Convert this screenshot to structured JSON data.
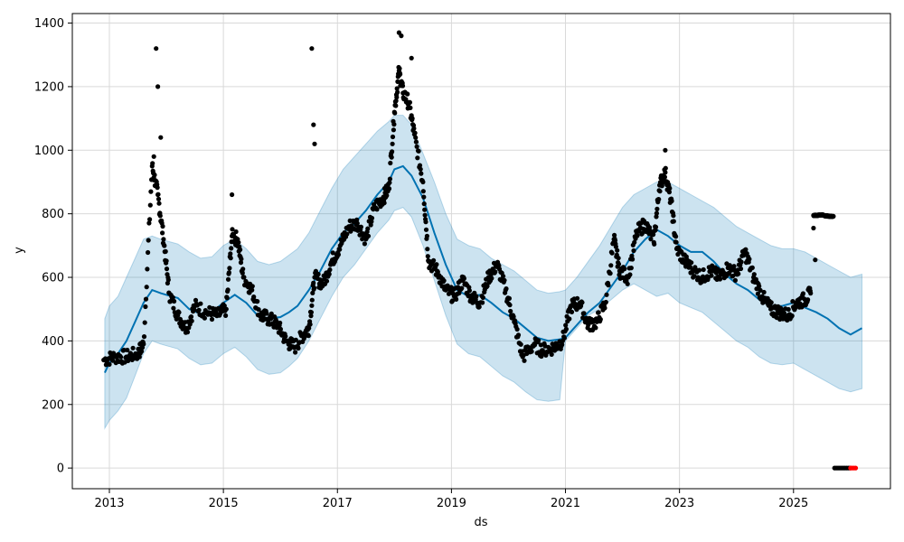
{
  "chart_data": {
    "type": "line",
    "title": "",
    "xlabel": "ds",
    "ylabel": "y",
    "grid": true,
    "xlim": [
      2012.35,
      2026.7
    ],
    "ylim": [
      -65,
      1430
    ],
    "x_ticks": [
      {
        "value": 2013,
        "label": "2013"
      },
      {
        "value": 2015,
        "label": "2015"
      },
      {
        "value": 2017,
        "label": "2017"
      },
      {
        "value": 2019,
        "label": "2019"
      },
      {
        "value": 2021,
        "label": "2021"
      },
      {
        "value": 2023,
        "label": "2023"
      },
      {
        "value": 2025,
        "label": "2025"
      }
    ],
    "y_ticks": [
      {
        "value": 0,
        "label": "0"
      },
      {
        "value": 200,
        "label": "200"
      },
      {
        "value": 400,
        "label": "400"
      },
      {
        "value": 600,
        "label": "600"
      },
      {
        "value": 800,
        "label": "800"
      },
      {
        "value": 1000,
        "label": "1000"
      },
      {
        "value": 1200,
        "label": "1200"
      },
      {
        "value": 1400,
        "label": "1400"
      }
    ],
    "colors": {
      "forecast_line": "#0072B2",
      "interval_fill": "#0072B2",
      "observed_points": "#000000",
      "highlight_points": "#ff0000",
      "grid": "#d9d9d9"
    },
    "forecast": {
      "x": [
        2012.92,
        2013.0,
        2013.15,
        2013.3,
        2013.45,
        2013.6,
        2013.75,
        2013.9,
        2014.0,
        2014.2,
        2014.4,
        2014.6,
        2014.8,
        2015.0,
        2015.2,
        2015.4,
        2015.6,
        2015.8,
        2016.0,
        2016.15,
        2016.3,
        2016.5,
        2016.7,
        2016.9,
        2017.1,
        2017.3,
        2017.5,
        2017.7,
        2017.9,
        2018.0,
        2018.15,
        2018.3,
        2018.5,
        2018.7,
        2018.9,
        2019.1,
        2019.3,
        2019.5,
        2019.7,
        2019.9,
        2020.1,
        2020.3,
        2020.5,
        2020.7,
        2020.9,
        2021.0,
        2021.2,
        2021.4,
        2021.6,
        2021.8,
        2022.0,
        2022.2,
        2022.4,
        2022.6,
        2022.8,
        2023.0,
        2023.2,
        2023.4,
        2023.6,
        2023.8,
        2024.0,
        2024.2,
        2024.4,
        2024.6,
        2024.8,
        2025.0,
        2025.2,
        2025.4,
        2025.6,
        2025.8,
        2026.0,
        2026.2
      ],
      "yhat": [
        300,
        330,
        360,
        400,
        460,
        520,
        560,
        550,
        545,
        535,
        500,
        485,
        490,
        520,
        545,
        520,
        480,
        470,
        475,
        490,
        510,
        560,
        620,
        690,
        740,
        770,
        810,
        860,
        900,
        940,
        950,
        920,
        850,
        740,
        640,
        560,
        540,
        545,
        520,
        490,
        470,
        440,
        410,
        400,
        405,
        410,
        450,
        490,
        520,
        570,
        620,
        680,
        720,
        750,
        730,
        700,
        680,
        680,
        650,
        610,
        580,
        560,
        530,
        510,
        510,
        520,
        505,
        490,
        470,
        440,
        420,
        440
      ],
      "yhat_lower": [
        125,
        150,
        180,
        220,
        290,
        360,
        400,
        390,
        385,
        375,
        345,
        325,
        330,
        360,
        380,
        350,
        310,
        295,
        300,
        320,
        345,
        400,
        470,
        540,
        600,
        640,
        690,
        740,
        780,
        810,
        820,
        790,
        700,
        590,
        480,
        390,
        360,
        350,
        320,
        290,
        270,
        240,
        215,
        210,
        215,
        400,
        440,
        480,
        500,
        530,
        560,
        580,
        560,
        540,
        550,
        520,
        505,
        490,
        460,
        430,
        400,
        380,
        350,
        330,
        325,
        330,
        310,
        290,
        270,
        250,
        240,
        250
      ],
      "yhat_upper": [
        470,
        510,
        540,
        600,
        660,
        720,
        730,
        720,
        715,
        705,
        680,
        660,
        665,
        700,
        720,
        690,
        650,
        640,
        650,
        670,
        690,
        740,
        810,
        880,
        940,
        980,
        1020,
        1060,
        1090,
        1110,
        1110,
        1080,
        990,
        900,
        800,
        720,
        700,
        690,
        660,
        640,
        620,
        590,
        560,
        550,
        555,
        560,
        600,
        650,
        700,
        760,
        820,
        860,
        880,
        900,
        900,
        880,
        860,
        840,
        820,
        790,
        760,
        740,
        720,
        700,
        690,
        690,
        680,
        660,
        640,
        620,
        600,
        610
      ]
    },
    "observed_segments": [
      {
        "x": [
          2012.9,
          2013.1,
          2013.3,
          2013.5,
          2013.6,
          2013.75,
          2013.85,
          2013.95,
          2014.05,
          2014.2,
          2014.35,
          2014.5,
          2014.7,
          2014.9,
          2015.05,
          2015.15,
          2015.25,
          2015.35,
          2015.5,
          2015.65,
          2015.8,
          2015.95,
          2016.1,
          2016.25,
          2016.4,
          2016.5,
          2016.6,
          2016.75,
          2016.9,
          2017.05,
          2017.2,
          2017.35,
          2017.5,
          2017.65,
          2017.8,
          2017.9,
          2018.0,
          2018.08,
          2018.15,
          2018.25,
          2018.35,
          2018.5,
          2018.6,
          2018.75,
          2018.9,
          2019.05,
          2019.2,
          2019.35,
          2019.5,
          2019.65,
          2019.8,
          2019.95,
          2020.1,
          2020.25,
          2020.45,
          2020.6,
          2020.8,
          2020.95,
          2021.1,
          2021.25,
          2021.4,
          2021.55,
          2021.7,
          2021.85,
          2021.95,
          2022.1,
          2022.25,
          2022.4,
          2022.55,
          2022.65,
          2022.75,
          2022.85,
          2022.95,
          2023.1,
          2023.25,
          2023.4,
          2023.55,
          2023.7,
          2023.85,
          2024.0,
          2024.15,
          2024.3,
          2024.45,
          2024.6,
          2024.75,
          2024.9,
          2025.05,
          2025.2,
          2025.3
        ],
        "y": [
          340,
          350,
          350,
          360,
          390,
          950,
          860,
          720,
          550,
          480,
          440,
          510,
          490,
          480,
          500,
          730,
          720,
          600,
          560,
          480,
          470,
          450,
          400,
          380,
          420,
          440,
          600,
          580,
          650,
          700,
          760,
          770,
          720,
          820,
          850,
          880,
          1120,
          1250,
          1180,
          1150,
          1050,
          900,
          650,
          620,
          560,
          540,
          590,
          540,
          520,
          600,
          640,
          560,
          460,
          350,
          390,
          370,
          380,
          400,
          510,
          520,
          450,
          460,
          520,
          720,
          620,
          600,
          740,
          770,
          710,
          890,
          930,
          840,
          690,
          650,
          620,
          600,
          620,
          600,
          630,
          610,
          680,
          600,
          540,
          500,
          490,
          480,
          520,
          530,
          550
        ]
      },
      {
        "x": [
          2025.35,
          2025.4,
          2025.45,
          2025.5,
          2025.55,
          2025.6,
          2025.65,
          2025.7
        ],
        "y": [
          795,
          795,
          796,
          797,
          794,
          793,
          792,
          792
        ]
      }
    ],
    "outliers": {
      "x": [
        2013.78,
        2013.82,
        2013.85,
        2013.9,
        2015.15,
        2016.55,
        2016.58,
        2016.6,
        2018.08,
        2018.12,
        2018.3,
        2022.75,
        2025.35,
        2025.38
      ],
      "y": [
        980,
        1320,
        1200,
        1040,
        860,
        1320,
        1080,
        1020,
        1370,
        1360,
        1290,
        1000,
        755,
        655
      ]
    },
    "tail_points": {
      "x": [
        2025.72,
        2025.75,
        2025.78,
        2025.81,
        2025.84,
        2025.87,
        2025.9,
        2025.93,
        2025.96,
        2025.99
      ],
      "y": [
        0,
        0,
        0,
        0,
        0,
        0,
        0,
        0,
        0,
        0
      ]
    },
    "highlight_points": {
      "x": [
        2026.0,
        2026.03,
        2026.06,
        2026.09
      ],
      "y": [
        0,
        0,
        0,
        0
      ]
    }
  }
}
